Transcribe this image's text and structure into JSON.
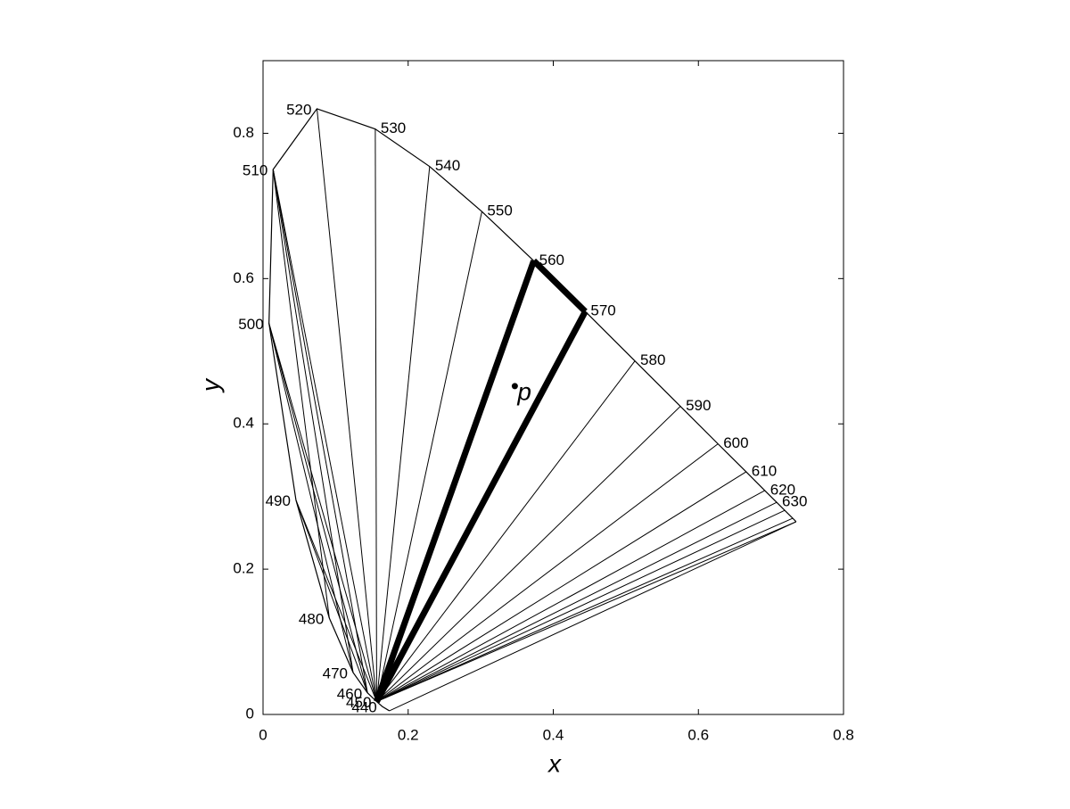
{
  "chart_data": {
    "type": "chromaticity",
    "xlabel": "x",
    "ylabel": "y",
    "xlim": [
      0,
      0.8
    ],
    "ylim": [
      0,
      0.9
    ],
    "xticks": [
      0,
      0.2,
      0.4,
      0.6,
      0.8
    ],
    "yticks": [
      0,
      0.2,
      0.4,
      0.6,
      0.8
    ],
    "color": "#000000",
    "labels": [
      null,
      440,
      450,
      460,
      470,
      480,
      490,
      500,
      510,
      520,
      530,
      540,
      550,
      560,
      570,
      580,
      590,
      600,
      610,
      620,
      630,
      null,
      null,
      null
    ],
    "x": [
      0.1741,
      0.1644,
      0.1566,
      0.144,
      0.1241,
      0.0913,
      0.0454,
      0.0082,
      0.0139,
      0.0743,
      0.1547,
      0.2296,
      0.3016,
      0.3731,
      0.4441,
      0.5125,
      0.5752,
      0.627,
      0.6658,
      0.6915,
      0.7079,
      0.719,
      0.73,
      0.7347
    ],
    "y": [
      0.005,
      0.0109,
      0.0177,
      0.0297,
      0.0578,
      0.1327,
      0.295,
      0.5384,
      0.7502,
      0.8338,
      0.8059,
      0.7543,
      0.6923,
      0.6245,
      0.5547,
      0.4866,
      0.4242,
      0.3725,
      0.334,
      0.3083,
      0.292,
      0.2809,
      0.27,
      0.2653
    ],
    "annotations": [
      {
        "text": "p",
        "x": 0.347,
        "y": 0.452
      }
    ]
  }
}
